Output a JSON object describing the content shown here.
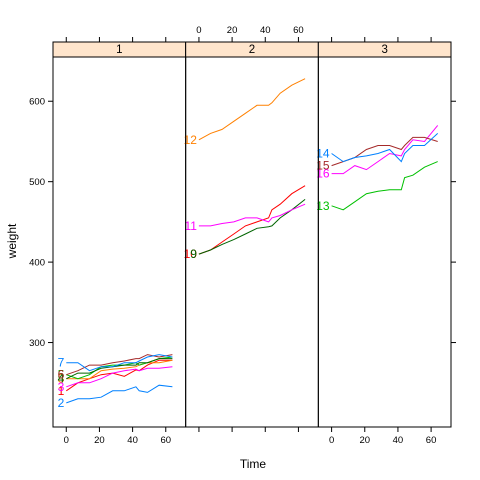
{
  "chart_data": {
    "type": "line",
    "xlabel": "Time",
    "ylabel": "weight",
    "xlim": [
      -8,
      72
    ],
    "ylim": [
      195,
      655
    ],
    "x_ticks": [
      0,
      20,
      40,
      60
    ],
    "y_ticks": [
      300,
      400,
      500,
      600
    ],
    "time": [
      0,
      7,
      14,
      21,
      28,
      35,
      42,
      44,
      49,
      56,
      64
    ],
    "panels": [
      {
        "strip": "1",
        "series": [
          {
            "id": "2",
            "color": "#0080ff",
            "values": [
              225,
              230,
              230,
              232,
              240,
              240,
              245,
              240,
              238,
              247,
              245
            ]
          },
          {
            "id": "1",
            "color": "#ff0000",
            "values": [
              240,
              250,
              255,
              260,
              262,
              258,
              266,
              265,
              272,
              278,
              278
            ]
          },
          {
            "id": "3",
            "color": "#ff00ff",
            "values": [
              245,
              250,
              250,
              255,
              262,
              265,
              267,
              265,
              268,
              268,
              270
            ]
          },
          {
            "id": "8",
            "color": "#ff8000",
            "values": [
              255,
              255,
              255,
              265,
              267,
              268,
              270,
              272,
              275,
              275,
              278
            ]
          },
          {
            "id": "5",
            "color": "#00c000",
            "values": [
              260,
              255,
              260,
              270,
              272,
              272,
              275,
              272,
              275,
              280,
              282
            ]
          },
          {
            "id": "4",
            "color": "#006400",
            "values": [
              255,
              262,
              262,
              268,
              270,
              272,
              272,
              275,
              275,
              280,
              280
            ]
          },
          {
            "id": "6",
            "color": "#a52a2a",
            "values": [
              260,
              265,
              272,
              272,
              275,
              277,
              280,
              280,
              285,
              282,
              285
            ]
          },
          {
            "id": "7",
            "color": "#0080ff",
            "values": [
              275,
              275,
              265,
              270,
              270,
              275,
              275,
              277,
              282,
              285,
              282
            ]
          }
        ]
      },
      {
        "strip": "2",
        "series": [
          {
            "id": "10",
            "color": "#ff0000",
            "values": [
              410,
              415,
              425,
              435,
              445,
              450,
              455,
              465,
              472,
              485,
              495
            ]
          },
          {
            "id": "9",
            "color": "#006400",
            "values": [
              410,
              415,
              422,
              428,
              435,
              442,
              444,
              445,
              455,
              465,
              478
            ]
          },
          {
            "id": "11",
            "color": "#ff00ff",
            "values": [
              445,
              445,
              448,
              450,
              455,
              455,
              450,
              455,
              458,
              465,
              472
            ]
          },
          {
            "id": "12",
            "color": "#ff8000",
            "values": [
              552,
              560,
              565,
              575,
              585,
              595,
              595,
              598,
              610,
              620,
              628
            ]
          }
        ]
      },
      {
        "strip": "3",
        "series": [
          {
            "id": "13",
            "color": "#00c000",
            "values": [
              470,
              465,
              475,
              485,
              488,
              490,
              490,
              505,
              508,
              518,
              525
            ]
          },
          {
            "id": "16",
            "color": "#ff00ff",
            "values": [
              510,
              510,
              520,
              515,
              525,
              535,
              532,
              540,
              552,
              550,
              570
            ]
          },
          {
            "id": "15",
            "color": "#a52a2a",
            "values": [
              520,
              525,
              530,
              540,
              545,
              545,
              540,
              545,
              555,
              555,
              550
            ]
          },
          {
            "id": "14",
            "color": "#0080ff",
            "values": [
              535,
              525,
              530,
              532,
              535,
              540,
              525,
              535,
              545,
              545,
              560
            ]
          }
        ]
      }
    ]
  }
}
